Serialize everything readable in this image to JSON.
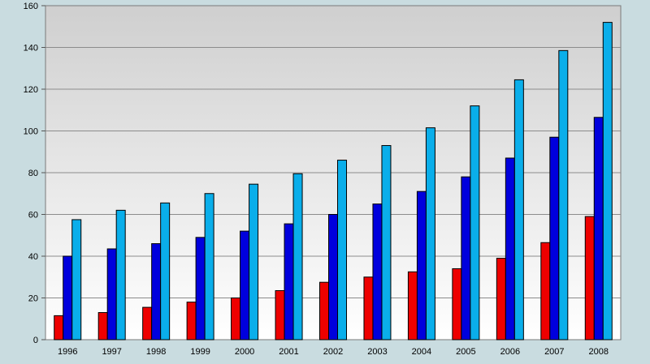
{
  "chart_data": {
    "type": "bar",
    "title": "",
    "xlabel": "",
    "ylabel": "",
    "categories": [
      "1996",
      "1997",
      "1998",
      "1999",
      "2000",
      "2001",
      "2002",
      "2003",
      "2004",
      "2005",
      "2006",
      "2007",
      "2008"
    ],
    "series": [
      {
        "color": "#ee0000",
        "values": [
          11.5,
          13,
          15.5,
          18,
          20,
          23.5,
          27.5,
          30,
          32.5,
          34,
          39,
          46.5,
          59
        ]
      },
      {
        "color": "#0000dd",
        "values": [
          40,
          43.5,
          46,
          49,
          52,
          55.5,
          60,
          65,
          71,
          78,
          87,
          97,
          106.5
        ]
      },
      {
        "color": "#0aaeea",
        "values": [
          57.5,
          62,
          65.5,
          70,
          74.5,
          79.5,
          86,
          93,
          101.5,
          112,
          124.5,
          138.5,
          152
        ]
      }
    ],
    "ylim": [
      0,
      160
    ],
    "yticks": [
      0,
      20,
      40,
      60,
      80,
      100,
      120,
      140,
      160
    ],
    "grid": true,
    "legend": "none",
    "colors": {
      "background": "#c9dce0",
      "plot_top": "#cfcfcf",
      "plot_bottom": "#ffffff",
      "gridline": "#8c8c8c"
    }
  }
}
